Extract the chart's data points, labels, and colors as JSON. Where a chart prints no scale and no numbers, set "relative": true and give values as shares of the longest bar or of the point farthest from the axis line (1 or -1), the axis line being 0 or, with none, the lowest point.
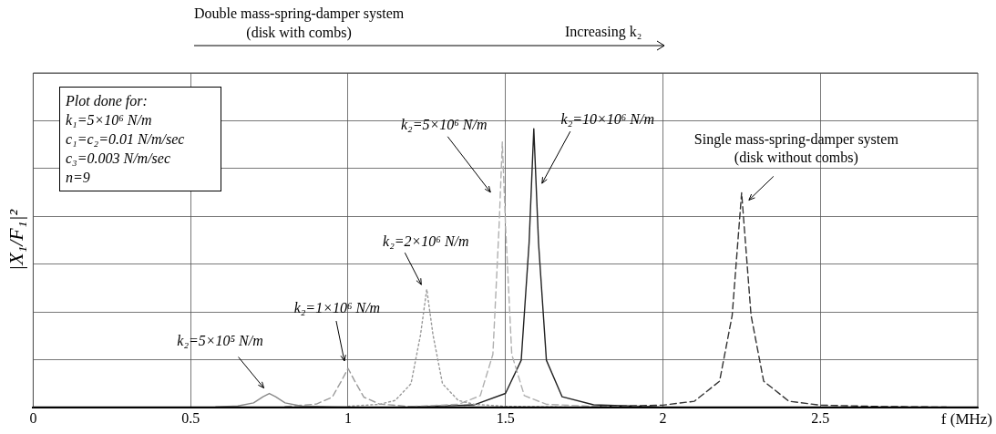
{
  "chart_data": {
    "type": "line",
    "relative": true,
    "ylabel": "|X₁/F₁|²",
    "xlabel": "f (MHz)",
    "xlim": [
      0,
      3
    ],
    "xticks": [
      0,
      0.5,
      1,
      1.5,
      2,
      2.5
    ],
    "grid": true,
    "marker": "none",
    "series": [
      {
        "color": "#8a8a8a",
        "line_style": "solid",
        "x": [
          0.58,
          0.65,
          0.7,
          0.73,
          0.75,
          0.77,
          0.8,
          0.85,
          0.95,
          1.0
        ],
        "values": [
          0.002,
          0.005,
          0.016,
          0.038,
          0.05,
          0.038,
          0.016,
          0.005,
          0.002,
          0.001
        ]
      },
      {
        "color": "#9a9a9a",
        "line_style": "dashed",
        "x": [
          0.8,
          0.9,
          0.95,
          0.98,
          1.0,
          1.02,
          1.05,
          1.1,
          1.2,
          1.4
        ],
        "values": [
          0.003,
          0.012,
          0.037,
          0.097,
          0.14,
          0.097,
          0.037,
          0.012,
          0.003,
          0.001
        ]
      },
      {
        "color": "#999999",
        "line_style": "dotted",
        "x": [
          1.0,
          1.1,
          1.15,
          1.2,
          1.23,
          1.25,
          1.27,
          1.3,
          1.35,
          1.4,
          1.5,
          1.7
        ],
        "values": [
          0.004,
          0.011,
          0.025,
          0.085,
          0.259,
          0.424,
          0.259,
          0.085,
          0.025,
          0.011,
          0.004,
          0.001
        ]
      },
      {
        "color": "#b0b0b0",
        "line_style": "dashed",
        "x": [
          1.2,
          1.35,
          1.42,
          1.46,
          1.48,
          1.49,
          1.5,
          1.52,
          1.56,
          1.63,
          1.8,
          2.0
        ],
        "values": [
          0.003,
          0.011,
          0.042,
          0.19,
          0.657,
          0.952,
          0.657,
          0.19,
          0.042,
          0.011,
          0.003,
          0.001
        ]
      },
      {
        "color": "#222222",
        "line_style": "solid",
        "x": [
          1.2,
          1.4,
          1.5,
          1.55,
          1.575,
          1.59,
          1.605,
          1.63,
          1.68,
          1.78,
          1.98
        ],
        "values": [
          0.002,
          0.009,
          0.05,
          0.169,
          0.59,
          1,
          0.59,
          0.169,
          0.038,
          0.009,
          0.002
        ]
      },
      {
        "color": "#333333",
        "line_style": "dashed",
        "x": [
          1.8,
          2.0,
          2.1,
          2.18,
          2.22,
          2.25,
          2.28,
          2.32,
          2.4,
          2.5,
          2.7,
          2.9
        ],
        "values": [
          0.003,
          0.008,
          0.022,
          0.094,
          0.33,
          0.77,
          0.33,
          0.094,
          0.022,
          0.008,
          0.003,
          0.001
        ]
      }
    ],
    "annotations": [
      "Plot done for:\nk₁=5×10⁶ N/m\nc₁=c₂=0.01 N/m/sec\nc₃=0.003 N/m/sec\nn=9",
      "Double mass-spring-damper system\n(disk with combs)",
      "Increasing k₂",
      {
        "text": "k₂=5×10⁵ N/m",
        "x": 0.75,
        "y": 0.05
      },
      {
        "text": "k₂=1×10⁶ N/m",
        "x": 1.0,
        "y": 0.14
      },
      {
        "text": "k₂=2×10⁶ N/m",
        "x": 1.25,
        "y": 0.424
      },
      {
        "text": "k₂=5×10⁶ N/m",
        "x": 1.49,
        "y": 0.952
      },
      {
        "text": "k₂=10×10⁶ N/m",
        "x": 1.59,
        "y": 1
      },
      {
        "text": "Single mass-spring-damper system\n(disk without combs)",
        "x": 2.25,
        "y": 0.77
      }
    ]
  }
}
